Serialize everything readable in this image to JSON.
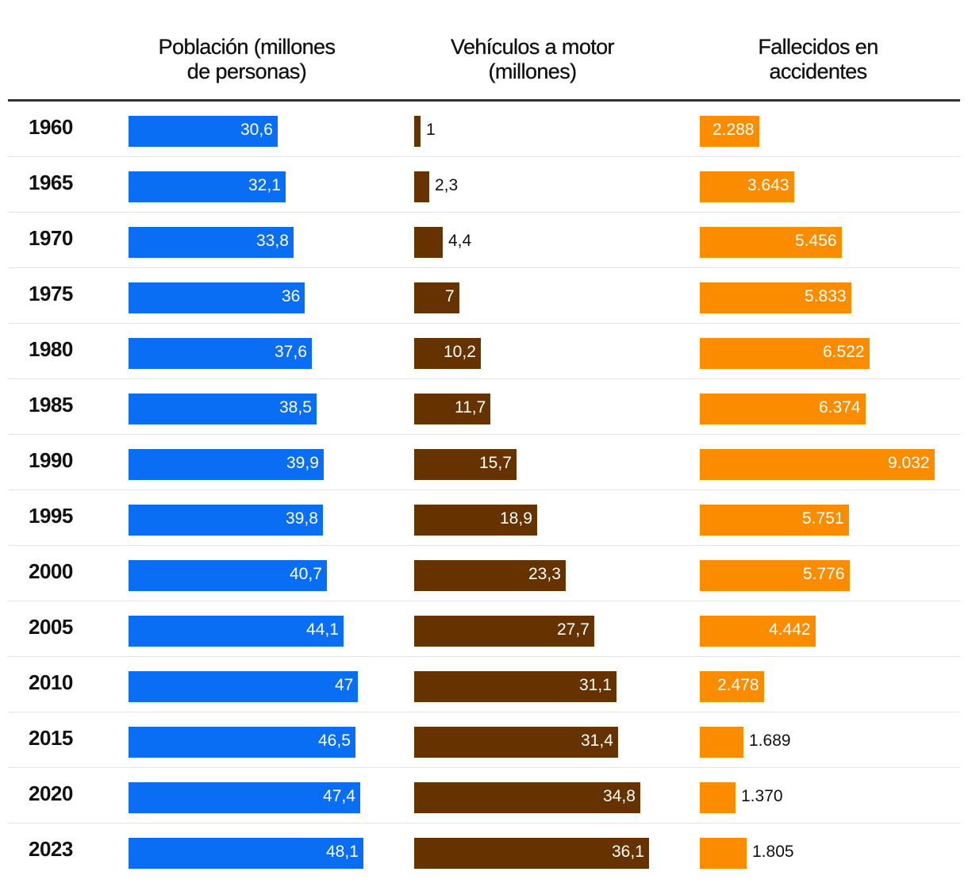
{
  "chart_data": {
    "type": "bar",
    "orientation": "horizontal",
    "layout": "small-multiples-table",
    "categories": [
      "1960",
      "1965",
      "1970",
      "1975",
      "1980",
      "1985",
      "1990",
      "1995",
      "2000",
      "2005",
      "2010",
      "2015",
      "2020",
      "2023"
    ],
    "series": [
      {
        "name": "Población (millones de personas)",
        "name_lines": [
          "Población (millones",
          "de personas)"
        ],
        "color": "#0a6ef5",
        "values": [
          30.6,
          32.1,
          33.8,
          36,
          37.6,
          38.5,
          39.9,
          39.8,
          40.7,
          44.1,
          47,
          46.5,
          47.4,
          48.1
        ],
        "labels": [
          "30,6",
          "32,1",
          "33,8",
          "36",
          "37,6",
          "38,5",
          "39,9",
          "39,8",
          "40,7",
          "44,1",
          "47",
          "46,5",
          "47,4",
          "48,1"
        ],
        "xlim": [
          0,
          48.1
        ]
      },
      {
        "name": "Vehículos a motor (millones)",
        "name_lines": [
          "Vehículos a motor",
          "(millones)"
        ],
        "color": "#663300",
        "values": [
          1,
          2.3,
          4.4,
          7,
          10.2,
          11.7,
          15.7,
          18.9,
          23.3,
          27.7,
          31.1,
          31.4,
          34.8,
          36.1
        ],
        "labels": [
          "1",
          "2,3",
          "4,4",
          "7",
          "10,2",
          "11,7",
          "15,7",
          "18,9",
          "23,3",
          "27,7",
          "31,1",
          "31,4",
          "34,8",
          "36,1"
        ],
        "xlim": [
          0,
          36.1
        ]
      },
      {
        "name": "Fallecidos en accidentes",
        "name_lines": [
          "Fallecidos en",
          "accidentes"
        ],
        "color": "#fb8c00",
        "values": [
          2288,
          3643,
          5456,
          5833,
          6522,
          6374,
          9032,
          5751,
          5776,
          4442,
          2478,
          1689,
          1370,
          1805
        ],
        "labels": [
          "2.288",
          "3.643",
          "5.456",
          "5.833",
          "6.522",
          "6.374",
          "9.032",
          "5.751",
          "5.776",
          "4.442",
          "2.478",
          "1.689",
          "1.370",
          "1.805"
        ],
        "xlim": [
          0,
          9032
        ]
      }
    ],
    "title": "",
    "xlabel": "",
    "ylabel": "",
    "grid": false,
    "legend": "column headers"
  }
}
